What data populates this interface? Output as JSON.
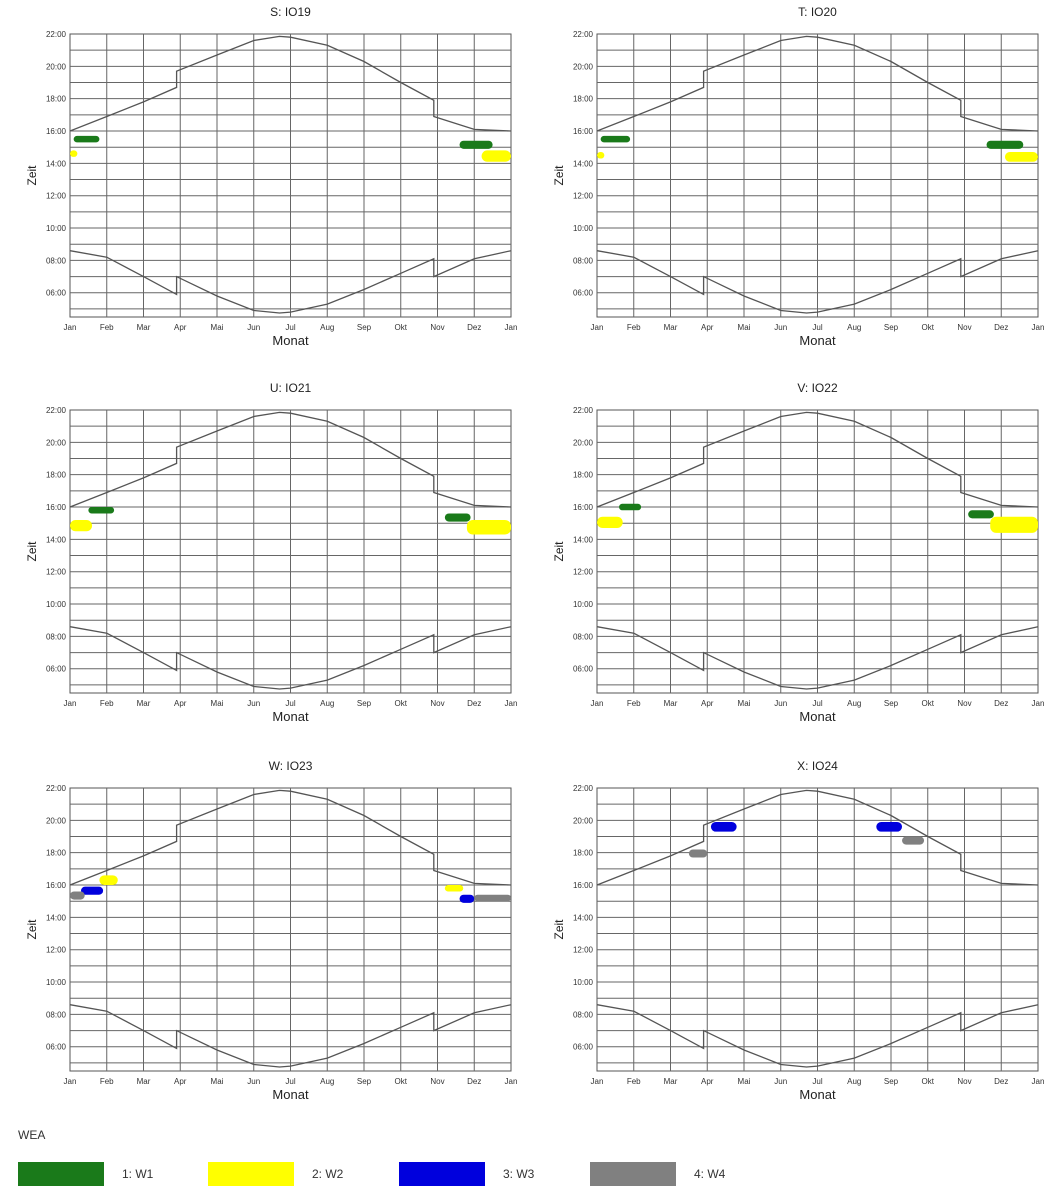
{
  "chart_data": [
    {
      "type": "scatter",
      "title": "S: IO19",
      "xlabel": "Monat",
      "ylabel": "Zeit",
      "x_ticks": [
        "Jan",
        "Feb",
        "Mar",
        "Apr",
        "Mai",
        "Jun",
        "Jul",
        "Aug",
        "Sep",
        "Okt",
        "Nov",
        "Dez",
        "Jan"
      ],
      "y_ticks": [
        "06:00",
        "08:00",
        "10:00",
        "12:00",
        "14:00",
        "16:00",
        "18:00",
        "20:00",
        "22:00"
      ],
      "ylim": [
        4.5,
        22
      ],
      "grid": true,
      "shadow_periods": [
        {
          "series": "1: W1",
          "color": "#1a7a1a",
          "month_start": 0.1,
          "month_end": 0.8,
          "time_start": 15.3,
          "time_end": 15.7
        },
        {
          "series": "2: W2",
          "color": "#ffff00",
          "month_start": 0.0,
          "month_end": 0.2,
          "time_start": 14.4,
          "time_end": 14.8
        },
        {
          "series": "1: W1",
          "color": "#1a7a1a",
          "month_start": 10.6,
          "month_end": 11.5,
          "time_start": 14.9,
          "time_end": 15.4
        },
        {
          "series": "2: W2",
          "color": "#ffff00",
          "month_start": 11.2,
          "month_end": 12.0,
          "time_start": 14.1,
          "time_end": 14.8
        }
      ]
    },
    {
      "type": "scatter",
      "title": "T: IO20",
      "xlabel": "Monat",
      "ylabel": "Zeit",
      "x_ticks": [
        "Jan",
        "Feb",
        "Mar",
        "Apr",
        "Mai",
        "Jun",
        "Jul",
        "Aug",
        "Sep",
        "Okt",
        "Nov",
        "Dez",
        "Jan"
      ],
      "y_ticks": [
        "06:00",
        "08:00",
        "10:00",
        "12:00",
        "14:00",
        "16:00",
        "18:00",
        "20:00",
        "22:00"
      ],
      "ylim": [
        4.5,
        22
      ],
      "grid": true,
      "shadow_periods": [
        {
          "series": "1: W1",
          "color": "#1a7a1a",
          "month_start": 0.1,
          "month_end": 0.9,
          "time_start": 15.3,
          "time_end": 15.7
        },
        {
          "series": "2: W2",
          "color": "#ffff00",
          "month_start": 0.0,
          "month_end": 0.2,
          "time_start": 14.3,
          "time_end": 14.7
        },
        {
          "series": "1: W1",
          "color": "#1a7a1a",
          "month_start": 10.6,
          "month_end": 11.6,
          "time_start": 14.9,
          "time_end": 15.4
        },
        {
          "series": "2: W2",
          "color": "#ffff00",
          "month_start": 11.1,
          "month_end": 12.0,
          "time_start": 14.1,
          "time_end": 14.7
        }
      ]
    },
    {
      "type": "scatter",
      "title": "U: IO21",
      "xlabel": "Monat",
      "ylabel": "Zeit",
      "x_ticks": [
        "Jan",
        "Feb",
        "Mar",
        "Apr",
        "Mai",
        "Jun",
        "Jul",
        "Aug",
        "Sep",
        "Okt",
        "Nov",
        "Dez",
        "Jan"
      ],
      "y_ticks": [
        "06:00",
        "08:00",
        "10:00",
        "12:00",
        "14:00",
        "16:00",
        "18:00",
        "20:00",
        "22:00"
      ],
      "ylim": [
        4.5,
        22
      ],
      "grid": true,
      "shadow_periods": [
        {
          "series": "1: W1",
          "color": "#1a7a1a",
          "month_start": 0.5,
          "month_end": 1.2,
          "time_start": 15.6,
          "time_end": 16.0
        },
        {
          "series": "2: W2",
          "color": "#ffff00",
          "month_start": 0.0,
          "month_end": 0.6,
          "time_start": 14.5,
          "time_end": 15.2
        },
        {
          "series": "1: W1",
          "color": "#1a7a1a",
          "month_start": 10.2,
          "month_end": 10.9,
          "time_start": 15.1,
          "time_end": 15.6
        },
        {
          "series": "2: W2",
          "color": "#ffff00",
          "month_start": 10.8,
          "month_end": 12.0,
          "time_start": 14.3,
          "time_end": 15.2
        }
      ]
    },
    {
      "type": "scatter",
      "title": "V: IO22",
      "xlabel": "Monat",
      "ylabel": "Zeit",
      "x_ticks": [
        "Jan",
        "Feb",
        "Mar",
        "Apr",
        "Mai",
        "Jun",
        "Jul",
        "Aug",
        "Sep",
        "Okt",
        "Nov",
        "Dez",
        "Jan"
      ],
      "y_ticks": [
        "06:00",
        "08:00",
        "10:00",
        "12:00",
        "14:00",
        "16:00",
        "18:00",
        "20:00",
        "22:00"
      ],
      "ylim": [
        4.5,
        22
      ],
      "grid": true,
      "shadow_periods": [
        {
          "series": "1: W1",
          "color": "#1a7a1a",
          "month_start": 0.6,
          "month_end": 1.2,
          "time_start": 15.8,
          "time_end": 16.2
        },
        {
          "series": "2: W2",
          "color": "#ffff00",
          "month_start": 0.0,
          "month_end": 0.7,
          "time_start": 14.7,
          "time_end": 15.4
        },
        {
          "series": "1: W1",
          "color": "#1a7a1a",
          "month_start": 10.1,
          "month_end": 10.8,
          "time_start": 15.3,
          "time_end": 15.8
        },
        {
          "series": "2: W2",
          "color": "#ffff00",
          "month_start": 10.7,
          "month_end": 12.0,
          "time_start": 14.4,
          "time_end": 15.4
        }
      ]
    },
    {
      "type": "scatter",
      "title": "W: IO23",
      "xlabel": "Monat",
      "ylabel": "Zeit",
      "x_ticks": [
        "Jan",
        "Feb",
        "Mar",
        "Apr",
        "Mai",
        "Jun",
        "Jul",
        "Aug",
        "Sep",
        "Okt",
        "Nov",
        "Dez",
        "Jan"
      ],
      "y_ticks": [
        "06:00",
        "08:00",
        "10:00",
        "12:00",
        "14:00",
        "16:00",
        "18:00",
        "20:00",
        "22:00"
      ],
      "ylim": [
        4.5,
        22
      ],
      "grid": true,
      "shadow_periods": [
        {
          "series": "2: W2",
          "color": "#ffff00",
          "month_start": 0.8,
          "month_end": 1.3,
          "time_start": 16.0,
          "time_end": 16.6
        },
        {
          "series": "3: W3",
          "color": "#0000dd",
          "month_start": 0.3,
          "month_end": 0.9,
          "time_start": 15.4,
          "time_end": 15.9
        },
        {
          "series": "4: W4",
          "color": "#808080",
          "month_start": 0.0,
          "month_end": 0.4,
          "time_start": 15.1,
          "time_end": 15.6
        },
        {
          "series": "2: W2",
          "color": "#ffff00",
          "month_start": 10.2,
          "month_end": 10.7,
          "time_start": 15.6,
          "time_end": 16.0
        },
        {
          "series": "3: W3",
          "color": "#0000dd",
          "month_start": 10.6,
          "month_end": 11.0,
          "time_start": 14.9,
          "time_end": 15.4
        },
        {
          "series": "4: W4",
          "color": "#808080",
          "month_start": 11.0,
          "month_end": 12.0,
          "time_start": 15.0,
          "time_end": 15.4
        }
      ]
    },
    {
      "type": "scatter",
      "title": "X: IO24",
      "xlabel": "Monat",
      "ylabel": "Zeit",
      "x_ticks": [
        "Jan",
        "Feb",
        "Mar",
        "Apr",
        "Mai",
        "Jun",
        "Jul",
        "Aug",
        "Sep",
        "Okt",
        "Nov",
        "Dez",
        "Jan"
      ],
      "y_ticks": [
        "06:00",
        "08:00",
        "10:00",
        "12:00",
        "14:00",
        "16:00",
        "18:00",
        "20:00",
        "22:00"
      ],
      "ylim": [
        4.5,
        22
      ],
      "grid": true,
      "shadow_periods": [
        {
          "series": "3: W3",
          "color": "#0000dd",
          "month_start": 3.1,
          "month_end": 3.8,
          "time_start": 19.3,
          "time_end": 19.9
        },
        {
          "series": "4: W4",
          "color": "#808080",
          "month_start": 2.5,
          "month_end": 3.0,
          "time_start": 17.7,
          "time_end": 18.2
        },
        {
          "series": "3: W3",
          "color": "#0000dd",
          "month_start": 7.6,
          "month_end": 8.3,
          "time_start": 19.3,
          "time_end": 19.9
        },
        {
          "series": "4: W4",
          "color": "#808080",
          "month_start": 8.3,
          "month_end": 8.9,
          "time_start": 18.5,
          "time_end": 19.0
        }
      ]
    }
  ],
  "sunset_curve": [
    [
      0,
      16.0
    ],
    [
      1,
      16.9
    ],
    [
      2,
      17.8
    ],
    [
      2.9,
      18.7
    ],
    [
      2.9,
      19.7
    ],
    [
      4,
      20.7
    ],
    [
      5,
      21.6
    ],
    [
      5.7,
      21.85
    ],
    [
      6,
      21.8
    ],
    [
      7,
      21.3
    ],
    [
      8,
      20.3
    ],
    [
      9,
      19.0
    ],
    [
      9.9,
      17.9
    ],
    [
      9.9,
      16.9
    ],
    [
      11,
      16.1
    ],
    [
      12,
      16.0
    ]
  ],
  "sunrise_curve": [
    [
      0,
      8.6
    ],
    [
      1,
      8.2
    ],
    [
      2,
      7.0
    ],
    [
      2.9,
      5.9
    ],
    [
      2.9,
      7.0
    ],
    [
      4,
      5.8
    ],
    [
      5,
      4.9
    ],
    [
      5.7,
      4.75
    ],
    [
      6,
      4.8
    ],
    [
      7,
      5.3
    ],
    [
      8,
      6.2
    ],
    [
      9,
      7.2
    ],
    [
      9.9,
      8.1
    ],
    [
      9.9,
      7.0
    ],
    [
      11,
      8.1
    ],
    [
      12,
      8.6
    ]
  ],
  "legend": {
    "title": "WEA",
    "items": [
      {
        "label": "1: W1",
        "color": "#1a7a1a"
      },
      {
        "label": "2: W2",
        "color": "#ffff00"
      },
      {
        "label": "3: W3",
        "color": "#0000dd"
      },
      {
        "label": "4: W4",
        "color": "#808080"
      }
    ]
  }
}
